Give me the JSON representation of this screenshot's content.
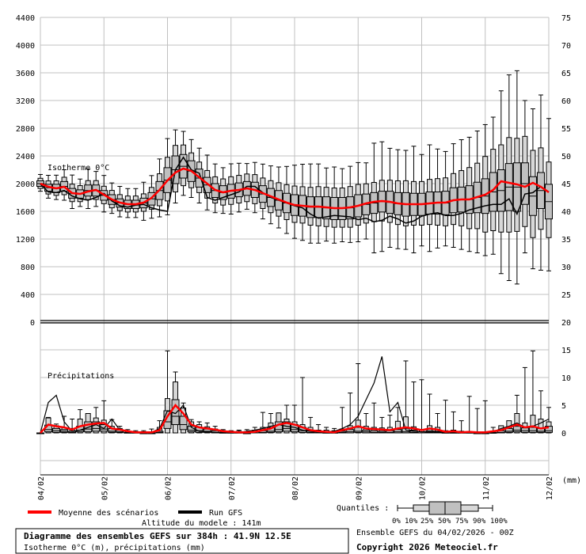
{
  "chart_data": [
    {
      "type": "boxplot+line",
      "title": "Isotherme 0°C",
      "ylabel": "Isotherme 0°C (m)",
      "ylim": [
        0,
        4400
      ],
      "yticks": [
        "0",
        "400",
        "800",
        "1200",
        "1600",
        "2000",
        "2400",
        "2800",
        "3200",
        "3600",
        "4000",
        "4400"
      ],
      "right_ticks": [
        "20",
        "25",
        "30",
        "35",
        "40",
        "45",
        "50",
        "55",
        "60",
        "65",
        "70",
        "75"
      ],
      "step_hours": 6,
      "mean": [
        2000,
        1954,
        1931,
        1954,
        1863,
        1851,
        1886,
        1909,
        1840,
        1771,
        1726,
        1703,
        1703,
        1726,
        1794,
        1909,
        2046,
        2160,
        2217,
        2183,
        2091,
        2000,
        1909,
        1874,
        1897,
        1909,
        1931,
        1909,
        1863,
        1817,
        1771,
        1726,
        1691,
        1680,
        1669,
        1669,
        1657,
        1646,
        1646,
        1657,
        1680,
        1714,
        1737,
        1749,
        1737,
        1714,
        1703,
        1703,
        1703,
        1714,
        1726,
        1726,
        1760,
        1771,
        1771,
        1806,
        1840,
        1909,
        2034,
        2011,
        1989,
        1954,
        2011,
        1954,
        1874
      ],
      "gfs": [
        1990,
        1880,
        1870,
        1900,
        1820,
        1780,
        1760,
        1800,
        1860,
        1750,
        1680,
        1660,
        1690,
        1700,
        1650,
        1620,
        1600,
        2200,
        2380,
        2200,
        2150,
        1800,
        1760,
        1800,
        1840,
        1880,
        1960,
        1960,
        1870,
        1800,
        1760,
        1720,
        1680,
        1650,
        1560,
        1500,
        1520,
        1540,
        1530,
        1520,
        1480,
        1500,
        1450,
        1470,
        1530,
        1490,
        1430,
        1460,
        1530,
        1560,
        1580,
        1540,
        1540,
        1570,
        1620,
        1650,
        1680,
        1700,
        1700,
        1780,
        1560,
        1850,
        1870,
        1960,
        1880
      ],
      "median": [
        2000,
        1940,
        1930,
        1960,
        1860,
        1850,
        1900,
        1900,
        1830,
        1770,
        1720,
        1700,
        1700,
        1720,
        1780,
        1900,
        2050,
        2200,
        2250,
        2180,
        2080,
        1980,
        1900,
        1870,
        1890,
        1910,
        1930,
        1910,
        1850,
        1800,
        1760,
        1720,
        1690,
        1680,
        1660,
        1660,
        1650,
        1640,
        1640,
        1650,
        1680,
        1700,
        1720,
        1740,
        1730,
        1710,
        1700,
        1700,
        1700,
        1720,
        1720,
        1720,
        1760,
        1770,
        1770,
        1800,
        1820,
        1880,
        1900,
        1950,
        1950,
        2000,
        1820,
        1900,
        1740
      ],
      "spread_25_75": [
        40,
        50,
        60,
        70,
        70,
        60,
        80,
        80,
        70,
        70,
        60,
        60,
        60,
        70,
        90,
        130,
        180,
        200,
        170,
        150,
        130,
        110,
        100,
        100,
        100,
        100,
        100,
        110,
        120,
        130,
        140,
        140,
        150,
        150,
        150,
        150,
        160,
        160,
        160,
        160,
        160,
        150,
        150,
        150,
        160,
        160,
        170,
        160,
        160,
        160,
        160,
        170,
        180,
        180,
        200,
        220,
        250,
        280,
        300,
        340,
        350,
        300,
        280,
        260,
        250
      ],
      "spread_10_90": [
        70,
        90,
        100,
        120,
        120,
        110,
        130,
        130,
        120,
        120,
        110,
        110,
        110,
        120,
        150,
        220,
        300,
        320,
        280,
        240,
        210,
        190,
        180,
        180,
        190,
        190,
        190,
        200,
        210,
        220,
        230,
        240,
        250,
        250,
        260,
        270,
        270,
        270,
        270,
        280,
        280,
        270,
        270,
        280,
        290,
        300,
        310,
        300,
        300,
        310,
        320,
        330,
        350,
        380,
        420,
        450,
        520,
        560,
        600,
        650,
        640,
        620,
        600,
        560,
        520
      ],
      "spread_0_100": [
        110,
        150,
        160,
        200,
        220,
        180,
        260,
        230,
        240,
        200,
        200,
        190,
        190,
        250,
        280,
        380,
        500,
        480,
        420,
        380,
        360,
        360,
        320,
        300,
        330,
        320,
        300,
        330,
        360,
        380,
        400,
        440,
        480,
        500,
        520,
        520,
        480,
        500,
        480,
        500,
        520,
        500,
        720,
        720,
        650,
        650,
        650,
        700,
        600,
        700,
        650,
        620,
        680,
        720,
        750,
        800,
        860,
        900,
        1200,
        1350,
        1400,
        1000,
        1050,
        1150,
        1000
      ]
    },
    {
      "type": "boxplot+line",
      "title": "Précipitations",
      "ylabel": "précipitations (mm)",
      "ylim": [
        0,
        20
      ],
      "yticks": [
        "0",
        "5",
        "10",
        "15",
        "20"
      ],
      "unit": "(mm)",
      "x_labels": [
        "04/02",
        "05/02",
        "06/02",
        "07/02",
        "08/02",
        "09/02",
        "10/02",
        "11/02",
        "12/02"
      ],
      "mean": [
        0,
        1.5,
        1.2,
        1.0,
        0.6,
        1.2,
        1.5,
        1.7,
        1.8,
        0.8,
        0.6,
        0.3,
        0.1,
        0.1,
        0.1,
        0.5,
        3.0,
        5.0,
        3.5,
        1.5,
        1.0,
        0.8,
        0.6,
        0.3,
        0.2,
        0.1,
        0.1,
        0.2,
        0.5,
        0.8,
        1.5,
        1.8,
        1.5,
        1.0,
        0.5,
        0.3,
        0.2,
        0.1,
        0.5,
        0.8,
        1.2,
        0.8,
        0.7,
        0.6,
        0.5,
        0.8,
        1.0,
        0.8,
        0.5,
        0.8,
        0.6,
        0.2,
        0.3,
        0.1,
        0.2,
        0.1,
        0.1,
        0.3,
        0.5,
        1.0,
        1.5,
        1.0,
        1.2,
        0.8,
        1.0
      ],
      "gfs": [
        0,
        5.5,
        6.8,
        2.0,
        0.3,
        0.5,
        1.0,
        1.5,
        0.8,
        2.5,
        0.5,
        0.2,
        0.1,
        0.1,
        0.1,
        0.8,
        4.0,
        3.5,
        5.0,
        1.0,
        0.3,
        0.2,
        0.1,
        0.1,
        0.1,
        0.1,
        0.3,
        0.5,
        0.8,
        1.2,
        1.5,
        1.2,
        1.0,
        0.5,
        0.3,
        0.1,
        0.2,
        0.3,
        0.8,
        1.5,
        3.0,
        6.0,
        9.0,
        13.8,
        3.8,
        5.5,
        0.5,
        0.3,
        0.2,
        0.2,
        0.2,
        0.1,
        0.2,
        0.1,
        0.1,
        0.1,
        0.1,
        0.2,
        0.8,
        1.2,
        1.8,
        1.0,
        1.2,
        1.8,
        2.5
      ],
      "p25": [
        0,
        0.2,
        0.1,
        0.1,
        0,
        0.2,
        0.2,
        0.3,
        0.3,
        0.1,
        0.1,
        0,
        0,
        0,
        0,
        0,
        0.8,
        1.5,
        0.6,
        0.2,
        0.1,
        0.1,
        0,
        0,
        0,
        0,
        0,
        0,
        0,
        0.1,
        0.2,
        0.3,
        0.2,
        0.1,
        0,
        0,
        0,
        0,
        0,
        0,
        0.1,
        0,
        0,
        0,
        0,
        0,
        0,
        0,
        0,
        0,
        0,
        0,
        0,
        0,
        0,
        0,
        0,
        0,
        0,
        0.1,
        0.2,
        0.1,
        0.1,
        0.1,
        0.1
      ],
      "p50": [
        0,
        0.6,
        0.4,
        0.3,
        0.1,
        0.5,
        0.7,
        0.8,
        0.7,
        0.3,
        0.2,
        0,
        0,
        0,
        0,
        0.1,
        2.0,
        3.0,
        1.5,
        0.5,
        0.4,
        0.3,
        0.1,
        0,
        0,
        0,
        0,
        0,
        0.1,
        0.3,
        0.6,
        0.8,
        0.6,
        0.4,
        0.1,
        0,
        0,
        0,
        0.1,
        0.2,
        0.3,
        0.2,
        0.1,
        0.1,
        0.1,
        0.2,
        0.2,
        0.1,
        0,
        0.1,
        0.1,
        0,
        0,
        0,
        0,
        0,
        0,
        0,
        0.1,
        0.3,
        0.5,
        0.4,
        0.4,
        0.3,
        0.4
      ],
      "p75": [
        0,
        1.4,
        0.8,
        0.6,
        0.3,
        1.2,
        2.0,
        2.0,
        1.5,
        0.8,
        0.5,
        0.1,
        0.1,
        0,
        0,
        0.3,
        4.0,
        6.0,
        3.0,
        1.2,
        1.0,
        0.7,
        0.4,
        0.1,
        0.1,
        0.1,
        0,
        0.2,
        0.4,
        1.0,
        2.0,
        2.0,
        1.5,
        1.0,
        0.5,
        0.2,
        0.1,
        0.1,
        0.3,
        0.6,
        1.0,
        0.5,
        0.4,
        0.3,
        0.4,
        0.6,
        0.8,
        0.5,
        0.2,
        0.4,
        0.3,
        0.1,
        0.1,
        0.1,
        0.1,
        0,
        0,
        0.1,
        0.4,
        0.8,
        1.2,
        0.9,
        1.0,
        0.8,
        1.2
      ],
      "p90": [
        0,
        2.7,
        1.3,
        1.0,
        0.8,
        2.5,
        3.5,
        2.7,
        2.3,
        1.2,
        0.8,
        0.3,
        0.2,
        0.2,
        0.1,
        1.0,
        6.2,
        9.2,
        4.5,
        2.0,
        1.5,
        1.1,
        0.7,
        0.4,
        0.3,
        0.3,
        0.1,
        0.5,
        1.0,
        1.8,
        3.6,
        2.5,
        2.0,
        1.5,
        1.0,
        0.5,
        0.5,
        0.4,
        0.7,
        1.3,
        2.3,
        1.2,
        1.0,
        0.9,
        1.0,
        2.1,
        2.9,
        1.1,
        0.6,
        1.3,
        1.0,
        0.4,
        0.5,
        0.3,
        0.2,
        0.1,
        0.2,
        0.1,
        1.3,
        2.2,
        3.5,
        1.8,
        3.2,
        2.5,
        2.0
      ],
      "max": [
        0,
        2.8,
        1.6,
        3.0,
        2.5,
        4.2,
        3.4,
        4.6,
        5.8,
        2.4,
        1.2,
        0.6,
        0.4,
        0.4,
        0.7,
        2.2,
        14.8,
        11.0,
        5.4,
        2.4,
        2.0,
        1.8,
        1.2,
        0.6,
        0.4,
        0.5,
        0.6,
        1.0,
        3.7,
        3.5,
        3.6,
        5.0,
        5.0,
        10.0,
        2.8,
        1.5,
        1.0,
        0.8,
        4.6,
        7.2,
        12.5,
        3.5,
        5.4,
        2.8,
        3.2,
        4.6,
        13.0,
        9.2,
        9.6,
        7.0,
        3.5,
        5.9,
        3.8,
        2.2,
        6.6,
        4.4,
        5.8,
        1.0,
        1.2,
        1.5,
        6.8,
        11.8,
        14.8,
        7.6,
        4.6
      ]
    }
  ],
  "axis": {
    "unit_label": "(mm)"
  },
  "labels": {
    "isotherm": "Isotherme 0°C",
    "precip": "Précipitations"
  },
  "legend": {
    "mean_label": "Moyenne des scénarios",
    "gfs_label": "Run GFS",
    "altitude": "Altitude du modele : 141m",
    "quantiles_label": "Quantiles :",
    "quantile_ticks": [
      "0%",
      "10%",
      "25%",
      "50%",
      "75%",
      "90%",
      "100%"
    ],
    "mean_color": "#ff0000",
    "gfs_color": "#000000",
    "box_color": "#c0c0c0"
  },
  "footer": {
    "title": "Diagramme des ensembles GEFS sur 384h : 41.9N 12.5E",
    "subtitle": "Isotherme 0°C (m), précipitations (mm)",
    "run": "Ensemble GEFS du 04/02/2026 - 00Z",
    "copyright": "Copyright 2026 Meteociel.fr"
  }
}
